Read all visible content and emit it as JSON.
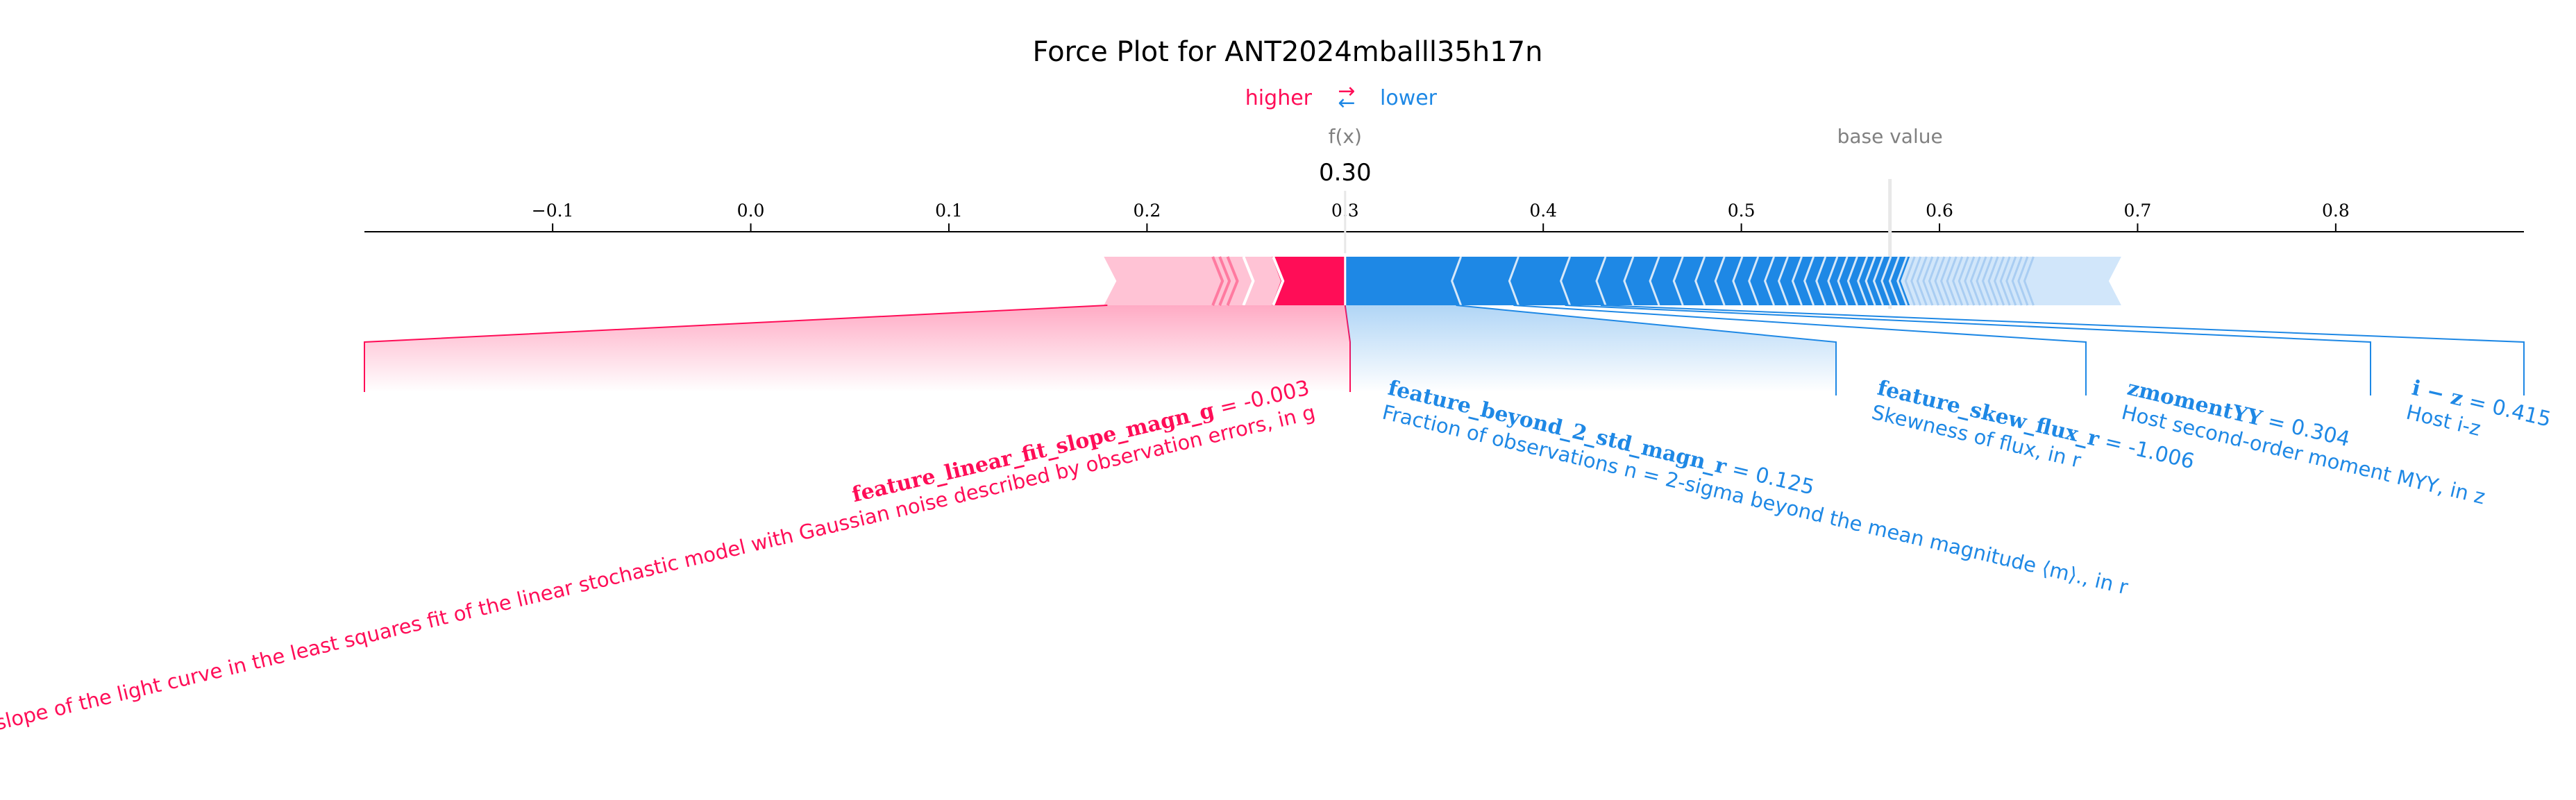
{
  "chart_data": {
    "type": "force",
    "title": "Force Plot for ANT2024mballl35h17n",
    "legend": {
      "higher": "higher",
      "lower": "lower",
      "arrows": "⇄"
    },
    "fx_label": "f(x)",
    "fx_value": 0.3,
    "fx_text": "0.30",
    "base_label": "base value",
    "base_value": 0.575,
    "xlim": [
      -0.195,
      0.895
    ],
    "ticks": [
      -0.1,
      0.0,
      0.1,
      0.2,
      0.3,
      0.4,
      0.5,
      0.6,
      0.7,
      0.8
    ],
    "tick_labels": [
      "−0.1",
      "0.0",
      "0.1",
      "0.2",
      "0.3",
      "0.4",
      "0.5",
      "0.6",
      "0.7",
      "0.8"
    ],
    "positive_range": [
      0.18,
      0.3
    ],
    "negative_range": [
      0.3,
      0.69
    ],
    "positive_segments": [
      0.2665,
      0.2515,
      0.2435,
      0.2395,
      0.236
    ],
    "negative_segments": [
      0.356,
      0.385,
      0.411,
      0.429,
      0.443,
      0.456,
      0.468,
      0.479,
      0.489,
      0.498,
      0.506,
      0.514,
      0.521,
      0.528,
      0.534,
      0.54,
      0.546,
      0.551,
      0.556,
      0.561,
      0.565,
      0.569,
      0.573,
      0.577,
      0.581,
      0.585,
      0.588,
      0.591,
      0.594,
      0.597,
      0.6,
      0.603,
      0.606,
      0.609,
      0.612,
      0.615,
      0.618,
      0.621,
      0.624,
      0.627,
      0.63,
      0.633,
      0.636,
      0.639,
      0.642,
      0.645
    ],
    "features": [
      {
        "name": "feature_linear_fit_slope_magn_g",
        "value_text": " = -0.003",
        "description": "The slope of the light curve in the least squares fit of the linear stochastic model with Gaussian noise described by observation errors, in g",
        "effect": "higher",
        "range": [
          0.18,
          0.3
        ]
      },
      {
        "name": "feature_beyond_2_std_magn_r",
        "value_text": " = 0.125",
        "description": "Fraction of observations n = 2-sigma beyond the mean magnitude ⟨m⟩., in r",
        "effect": "lower",
        "range": [
          0.3,
          0.356
        ]
      },
      {
        "name": "feature_skew_flux_r",
        "value_text": " = -1.006",
        "description": "Skewness of flux, in r",
        "effect": "lower",
        "range": [
          0.356,
          0.385
        ]
      },
      {
        "name": "zmomentYY",
        "value_text": " = 0.304",
        "description": "Host second-order moment MYY, in z",
        "effect": "lower",
        "range": [
          0.385,
          0.411
        ]
      },
      {
        "name": "i − z",
        "value_text": " = 0.415",
        "description": "Host i-z",
        "effect": "lower",
        "range": [
          0.411,
          0.429
        ]
      }
    ],
    "colors": {
      "positive": "#ff0d57",
      "positive_light": "#ffc3d5",
      "negative": "#1e88e5",
      "negative_light": "#d1e6fa",
      "fx_text": "#000000",
      "meta_text": "#808080"
    }
  }
}
